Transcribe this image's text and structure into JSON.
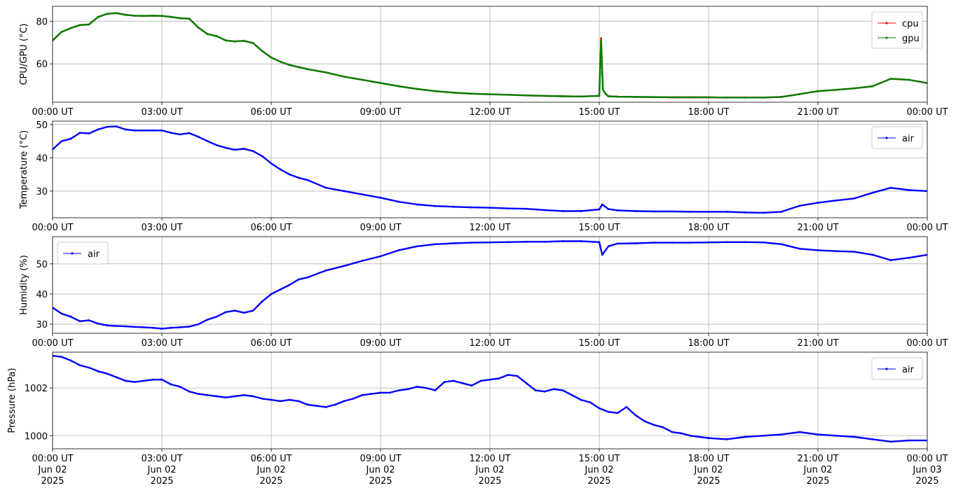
{
  "chart_data": [
    {
      "type": "line",
      "ylabel": "CPU/GPU (°C)",
      "xlim": [
        "2025-06-02T00:00",
        "2025-06-03T00:00"
      ],
      "ylim": [
        42,
        87
      ],
      "yticks": [
        60,
        80
      ],
      "xtick_labels": [
        "00:00 UT",
        "03:00 UT",
        "06:00 UT",
        "09:00 UT",
        "12:00 UT",
        "15:00 UT",
        "18:00 UT",
        "21:00 UT",
        "00:00 UT"
      ],
      "grid": true,
      "legend": "top-right",
      "series": [
        {
          "name": "cpu",
          "color": "#ff0000",
          "x": [
            "00:00",
            "00:15",
            "00:30",
            "00:45",
            "01:00",
            "01:15",
            "01:30",
            "01:45",
            "02:00",
            "02:15",
            "02:30",
            "02:45",
            "03:00",
            "03:15",
            "03:30",
            "03:45",
            "04:00",
            "04:15",
            "04:30",
            "04:45",
            "05:00",
            "05:15",
            "05:30",
            "05:45",
            "06:00",
            "06:15",
            "06:30",
            "06:45",
            "07:00",
            "07:30",
            "08:00",
            "08:30",
            "09:00",
            "09:30",
            "10:00",
            "10:30",
            "11:00",
            "11:30",
            "12:00",
            "12:30",
            "13:00",
            "13:30",
            "14:00",
            "14:30",
            "15:00",
            "15:03",
            "15:06",
            "15:10",
            "15:15",
            "15:30",
            "16:00",
            "16:30",
            "17:00",
            "17:30",
            "18:00",
            "18:30",
            "19:00",
            "19:30",
            "20:00",
            "20:30",
            "21:00",
            "21:30",
            "22:00",
            "22:30",
            "23:00",
            "23:30",
            "24:00"
          ],
          "y": [
            71,
            75,
            76.8,
            78.2,
            78.5,
            82,
            83.5,
            83.8,
            83,
            82.6,
            82.5,
            82.6,
            82.5,
            82,
            81.4,
            81.2,
            77,
            74,
            73,
            71,
            70.5,
            70.8,
            69.8,
            66,
            63,
            61,
            59.5,
            58.5,
            57.5,
            56,
            54,
            52.5,
            51,
            49.5,
            48.2,
            47.2,
            46.5,
            46,
            45.7,
            45.5,
            45.2,
            45,
            44.8,
            44.7,
            45,
            72,
            48,
            46,
            44.8,
            44.6,
            44.5,
            44.4,
            44.3,
            44.3,
            44.3,
            44.2,
            44.2,
            44.2,
            44.5,
            45.8,
            47.2,
            47.8,
            48.5,
            49.5,
            53,
            52.5,
            51
          ]
        },
        {
          "name": "gpu",
          "color": "#008000",
          "x": [
            "00:00",
            "00:15",
            "00:30",
            "00:45",
            "01:00",
            "01:15",
            "01:30",
            "01:45",
            "02:00",
            "02:15",
            "02:30",
            "02:45",
            "03:00",
            "03:15",
            "03:30",
            "03:45",
            "04:00",
            "04:15",
            "04:30",
            "04:45",
            "05:00",
            "05:15",
            "05:30",
            "05:45",
            "06:00",
            "06:15",
            "06:30",
            "06:45",
            "07:00",
            "07:30",
            "08:00",
            "08:30",
            "09:00",
            "09:30",
            "10:00",
            "10:30",
            "11:00",
            "11:30",
            "12:00",
            "12:30",
            "13:00",
            "13:30",
            "14:00",
            "14:30",
            "15:00",
            "15:03",
            "15:06",
            "15:10",
            "15:15",
            "15:30",
            "16:00",
            "16:30",
            "17:00",
            "17:30",
            "18:00",
            "18:30",
            "19:00",
            "19:30",
            "20:00",
            "20:30",
            "21:00",
            "21:30",
            "22:00",
            "22:30",
            "23:00",
            "23:30",
            "24:00"
          ],
          "y": [
            71,
            75,
            76.8,
            78.2,
            78.5,
            82,
            83.5,
            83.8,
            83,
            82.6,
            82.5,
            82.6,
            82.5,
            82,
            81.4,
            81.2,
            77,
            74,
            73,
            71,
            70.5,
            70.8,
            69.8,
            66,
            63,
            61,
            59.5,
            58.5,
            57.5,
            56,
            54,
            52.5,
            51,
            49.5,
            48.2,
            47.2,
            46.5,
            46,
            45.7,
            45.5,
            45.2,
            45,
            44.8,
            44.7,
            45,
            71,
            48,
            46,
            44.8,
            44.6,
            44.5,
            44.4,
            44.3,
            44.3,
            44.3,
            44.2,
            44.2,
            44.2,
            44.5,
            45.8,
            47.2,
            47.8,
            48.5,
            49.5,
            53,
            52.5,
            51
          ]
        }
      ]
    },
    {
      "type": "line",
      "ylabel": "Temperature (°C)",
      "xlim": [
        "2025-06-02T00:00",
        "2025-06-03T00:00"
      ],
      "ylim": [
        22,
        51
      ],
      "yticks": [
        30,
        40,
        50
      ],
      "xtick_labels": [
        "00:00 UT",
        "03:00 UT",
        "06:00 UT",
        "09:00 UT",
        "12:00 UT",
        "15:00 UT",
        "18:00 UT",
        "21:00 UT",
        "00:00 UT"
      ],
      "grid": true,
      "legend": "top-right",
      "series": [
        {
          "name": "air",
          "color": "#0000ff",
          "x": [
            "00:00",
            "00:15",
            "00:30",
            "00:45",
            "01:00",
            "01:15",
            "01:30",
            "01:45",
            "02:00",
            "02:15",
            "02:30",
            "02:45",
            "03:00",
            "03:15",
            "03:30",
            "03:45",
            "04:00",
            "04:15",
            "04:30",
            "04:45",
            "05:00",
            "05:15",
            "05:30",
            "05:45",
            "06:00",
            "06:15",
            "06:30",
            "06:45",
            "07:00",
            "07:30",
            "08:00",
            "08:30",
            "09:00",
            "09:30",
            "10:00",
            "10:30",
            "11:00",
            "11:30",
            "12:00",
            "12:30",
            "13:00",
            "13:30",
            "14:00",
            "14:30",
            "15:00",
            "15:05",
            "15:15",
            "15:30",
            "16:00",
            "16:30",
            "17:00",
            "17:30",
            "18:00",
            "18:30",
            "19:00",
            "19:30",
            "20:00",
            "20:30",
            "21:00",
            "21:30",
            "22:00",
            "22:30",
            "23:00",
            "23:30",
            "24:00"
          ],
          "y": [
            42.5,
            45,
            45.7,
            47.5,
            47.3,
            48.5,
            49.3,
            49.4,
            48.5,
            48.2,
            48.2,
            48.2,
            48.2,
            47.5,
            47,
            47.4,
            46.3,
            45,
            43.8,
            43,
            42.4,
            42.7,
            42,
            40.5,
            38.3,
            36.5,
            35,
            34,
            33.3,
            31,
            30,
            29,
            28,
            26.8,
            26,
            25.5,
            25.3,
            25.1,
            25,
            24.8,
            24.7,
            24.3,
            24,
            24,
            24.5,
            26,
            24.6,
            24.2,
            24,
            23.9,
            23.9,
            23.8,
            23.8,
            23.8,
            23.6,
            23.5,
            23.8,
            25.6,
            26.5,
            27.2,
            27.8,
            29.5,
            31,
            30.3,
            30
          ]
        }
      ]
    },
    {
      "type": "line",
      "ylabel": "Humidity (%)",
      "xlim": [
        "2025-06-02T00:00",
        "2025-06-03T00:00"
      ],
      "ylim": [
        27,
        59
      ],
      "yticks": [
        30,
        40,
        50
      ],
      "xtick_labels": [
        "00:00 UT",
        "03:00 UT",
        "06:00 UT",
        "09:00 UT",
        "12:00 UT",
        "15:00 UT",
        "18:00 UT",
        "21:00 UT",
        "00:00 UT"
      ],
      "grid": true,
      "legend": "top-left",
      "series": [
        {
          "name": "air",
          "color": "#0000ff",
          "x": [
            "00:00",
            "00:15",
            "00:30",
            "00:45",
            "01:00",
            "01:15",
            "01:30",
            "01:45",
            "02:00",
            "02:15",
            "02:30",
            "02:45",
            "03:00",
            "03:15",
            "03:30",
            "03:45",
            "04:00",
            "04:15",
            "04:30",
            "04:45",
            "05:00",
            "05:15",
            "05:30",
            "05:45",
            "06:00",
            "06:15",
            "06:30",
            "06:45",
            "07:00",
            "07:30",
            "08:00",
            "08:30",
            "09:00",
            "09:30",
            "10:00",
            "10:30",
            "11:00",
            "11:30",
            "12:00",
            "12:30",
            "13:00",
            "13:30",
            "14:00",
            "14:30",
            "15:00",
            "15:05",
            "15:15",
            "15:30",
            "16:00",
            "16:30",
            "17:00",
            "17:30",
            "18:00",
            "18:30",
            "19:00",
            "19:30",
            "20:00",
            "20:30",
            "21:00",
            "21:30",
            "22:00",
            "22:30",
            "23:00",
            "23:30",
            "24:00"
          ],
          "y": [
            35.5,
            33.5,
            32.5,
            31,
            31.3,
            30.2,
            29.6,
            29.4,
            29.3,
            29.1,
            29,
            28.8,
            28.5,
            28.8,
            29,
            29.2,
            30,
            31.5,
            32.5,
            34,
            34.5,
            33.8,
            34.5,
            37.5,
            40,
            41.5,
            43,
            44.8,
            45.5,
            47.8,
            49.3,
            51,
            52.5,
            54.5,
            55.8,
            56.5,
            56.8,
            57,
            57.1,
            57.2,
            57.3,
            57.3,
            57.5,
            57.5,
            57.2,
            53,
            55.8,
            56.7,
            56.8,
            57,
            57,
            57,
            57.1,
            57.2,
            57.2,
            57.1,
            56.5,
            55,
            54.5,
            54.2,
            54,
            53,
            51.2,
            52,
            53
          ]
        }
      ]
    },
    {
      "type": "line",
      "ylabel": "Pressure (hPa)",
      "xlim": [
        "2025-06-02T00:00",
        "2025-06-03T00:00"
      ],
      "ylim": [
        999.45,
        1003.5
      ],
      "yticks": [
        1000,
        1002
      ],
      "xtick_labels": [
        "00:00 UT\nJun 02\n2025",
        "03:00 UT\nJun 02\n2025",
        "06:00 UT\nJun 02\n2025",
        "09:00 UT\nJun 02\n2025",
        "12:00 UT\nJun 02\n2025",
        "15:00 UT\nJun 02\n2025",
        "18:00 UT\nJun 02\n2025",
        "21:00 UT\nJun 02\n2025",
        "00:00 UT\nJun 03\n2025"
      ],
      "grid": true,
      "legend": "top-right",
      "series": [
        {
          "name": "air",
          "color": "#0000ff",
          "x": [
            "00:00",
            "00:15",
            "00:30",
            "00:45",
            "01:00",
            "01:15",
            "01:30",
            "01:45",
            "02:00",
            "02:15",
            "02:30",
            "02:45",
            "03:00",
            "03:15",
            "03:30",
            "03:45",
            "04:00",
            "04:15",
            "04:30",
            "04:45",
            "05:00",
            "05:15",
            "05:30",
            "05:45",
            "06:00",
            "06:15",
            "06:30",
            "06:45",
            "07:00",
            "07:15",
            "07:30",
            "07:45",
            "08:00",
            "08:15",
            "08:30",
            "08:45",
            "09:00",
            "09:15",
            "09:30",
            "09:45",
            "10:00",
            "10:15",
            "10:30",
            "10:45",
            "11:00",
            "11:15",
            "11:30",
            "11:45",
            "12:00",
            "12:15",
            "12:30",
            "12:45",
            "13:00",
            "13:15",
            "13:30",
            "13:45",
            "14:00",
            "14:15",
            "14:30",
            "14:45",
            "15:00",
            "15:15",
            "15:30",
            "15:45",
            "16:00",
            "16:15",
            "16:30",
            "16:45",
            "17:00",
            "17:15",
            "17:30",
            "17:45",
            "18:00",
            "18:30",
            "19:00",
            "19:30",
            "20:00",
            "20:30",
            "21:00",
            "21:30",
            "22:00",
            "22:30",
            "23:00",
            "23:30",
            "24:00"
          ],
          "y": [
            1003.35,
            1003.3,
            1003.15,
            1002.95,
            1002.85,
            1002.7,
            1002.6,
            1002.45,
            1002.3,
            1002.25,
            1002.3,
            1002.35,
            1002.35,
            1002.15,
            1002.05,
            1001.85,
            1001.75,
            1001.7,
            1001.65,
            1001.6,
            1001.65,
            1001.7,
            1001.65,
            1001.55,
            1001.5,
            1001.45,
            1001.5,
            1001.45,
            1001.3,
            1001.25,
            1001.2,
            1001.3,
            1001.45,
            1001.55,
            1001.7,
            1001.75,
            1001.8,
            1001.8,
            1001.9,
            1001.95,
            1002.05,
            1002.0,
            1001.9,
            1002.25,
            1002.3,
            1002.2,
            1002.1,
            1002.3,
            1002.35,
            1002.4,
            1002.55,
            1002.5,
            1002.2,
            1001.9,
            1001.85,
            1001.95,
            1001.9,
            1001.7,
            1001.5,
            1001.4,
            1001.15,
            1001.0,
            1000.95,
            1001.2,
            1000.85,
            1000.6,
            1000.45,
            1000.35,
            1000.15,
            1000.1,
            1000.0,
            999.95,
            999.9,
            999.85,
            999.95,
            1000.0,
            1000.05,
            1000.15,
            1000.05,
            1000.0,
            999.95,
            999.85,
            999.75,
            999.8,
            999.8
          ]
        }
      ]
    }
  ]
}
